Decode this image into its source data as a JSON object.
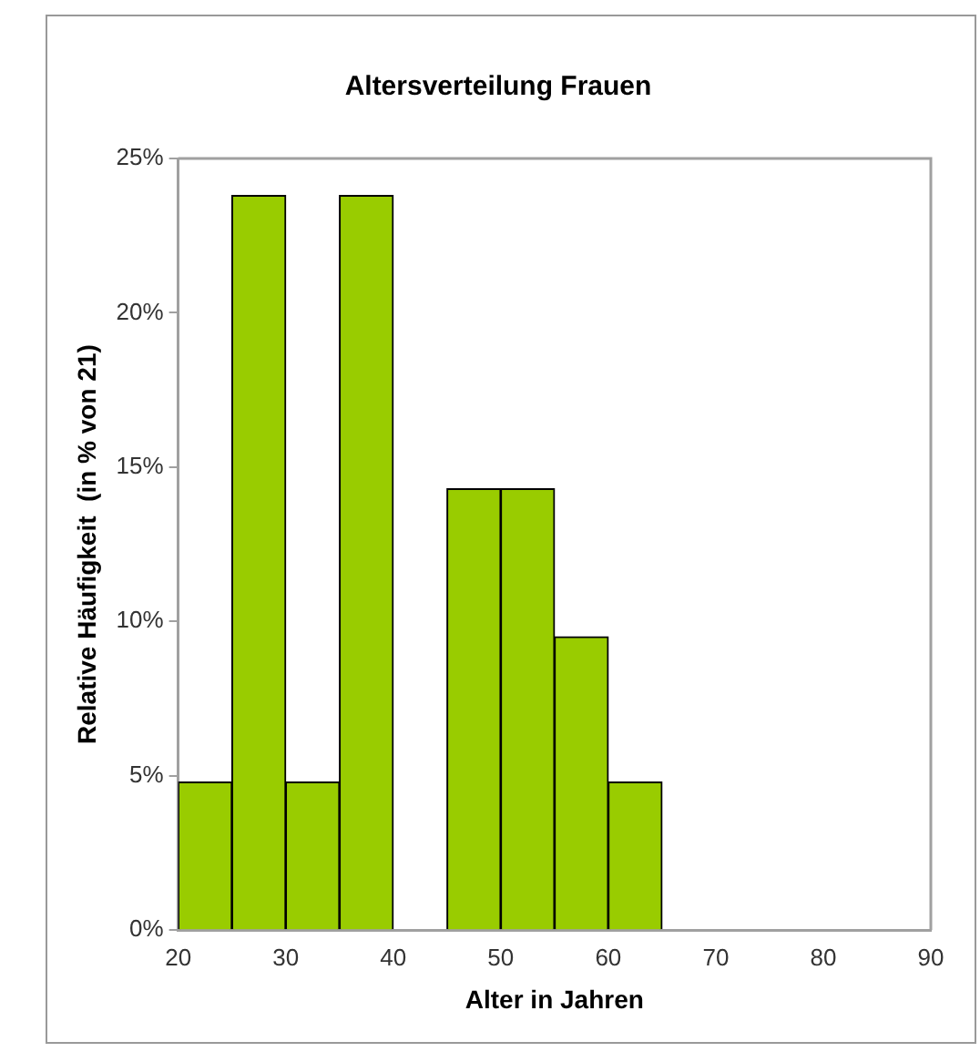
{
  "chart_data": {
    "type": "histogram",
    "title": "Altersverteilung Frauen",
    "xlabel": "Alter in Jahren",
    "ylabel": "Relative Häufigkeit  (in % von 21)",
    "bins": [
      20,
      25,
      30,
      35,
      40,
      45,
      50,
      55,
      60,
      65,
      70
    ],
    "values": [
      4.8,
      23.8,
      4.8,
      23.8,
      0,
      14.3,
      14.3,
      9.5,
      4.8,
      0
    ],
    "color": "#99cc00",
    "xlim": [
      20,
      90
    ],
    "xticks": [
      20,
      30,
      40,
      50,
      60,
      70,
      80,
      90
    ],
    "ylim": [
      0,
      25
    ],
    "yticks": [
      {
        "value": 0,
        "label": "0%"
      },
      {
        "value": 5,
        "label": "5%"
      },
      {
        "value": 10,
        "label": "10%"
      },
      {
        "value": 15,
        "label": "15%"
      },
      {
        "value": 20,
        "label": "20%"
      },
      {
        "value": 25,
        "label": "25%"
      }
    ],
    "grid": false,
    "legend": false
  }
}
